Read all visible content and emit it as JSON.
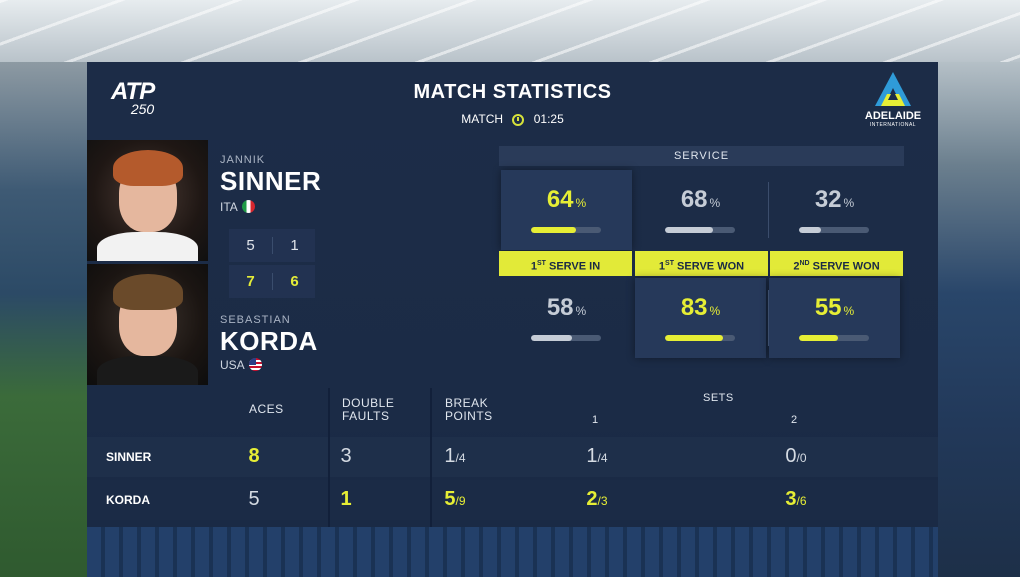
{
  "header": {
    "atp_logo": "ATP",
    "atp_tier": "250",
    "title": "MATCH STATISTICS",
    "match_label": "MATCH",
    "match_time": "01:25",
    "sponsor_name": "ADELAIDE",
    "sponsor_sub": "INTERNATIONAL"
  },
  "players": [
    {
      "first": "JANNIK",
      "last": "SINNER",
      "country": "ITA",
      "sets": [
        "5",
        "1"
      ]
    },
    {
      "first": "SEBASTIAN",
      "last": "KORDA",
      "country": "USA",
      "sets": [
        "7",
        "6"
      ]
    }
  ],
  "service": {
    "title": "SERVICE",
    "labels": [
      {
        "num": "1",
        "ord": "ST",
        "text": "SERVE IN"
      },
      {
        "num": "1",
        "ord": "ST",
        "text": "SERVE WON"
      },
      {
        "num": "2",
        "ord": "ND",
        "text": "SERVE WON"
      }
    ],
    "sinner": [
      {
        "value": "64",
        "unit": "%",
        "fraction": 0.64,
        "leader": true
      },
      {
        "value": "68",
        "unit": "%",
        "fraction": 0.68,
        "leader": false
      },
      {
        "value": "32",
        "unit": "%",
        "fraction": 0.32,
        "leader": false
      }
    ],
    "korda": [
      {
        "value": "58",
        "unit": "%",
        "fraction": 0.58,
        "leader": false
      },
      {
        "value": "83",
        "unit": "%",
        "fraction": 0.83,
        "leader": true
      },
      {
        "value": "55",
        "unit": "%",
        "fraction": 0.55,
        "leader": true
      }
    ],
    "colors": {
      "accent": "#e6ee35",
      "neutral": "#c5ccd6"
    }
  },
  "table": {
    "headers": {
      "aces": "ACES",
      "double_faults_1": "DOUBLE",
      "double_faults_2": "FAULTS",
      "break_points_1": "BREAK",
      "break_points_2": "POINTS",
      "sets": "SETS",
      "set1": "1",
      "set2": "2"
    },
    "rows": [
      {
        "name": "SINNER",
        "aces": "8",
        "double_faults": "3",
        "bp_num": "1",
        "bp_den": "/4",
        "s1_num": "1",
        "s1_den": "/4",
        "s2_num": "0",
        "s2_den": "/0"
      },
      {
        "name": "KORDA",
        "aces": "5",
        "double_faults": "1",
        "bp_num": "5",
        "bp_den": "/9",
        "s1_num": "2",
        "s1_den": "/3",
        "s2_num": "3",
        "s2_den": "/6"
      }
    ]
  }
}
